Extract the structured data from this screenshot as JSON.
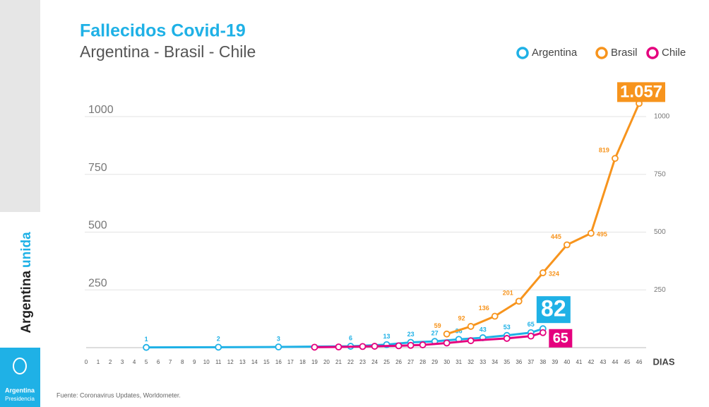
{
  "chart_data": {
    "type": "line",
    "title": "Fallecidos Covid-19",
    "subtitle": "Argentina - Brasil - Chile",
    "x_label": "DIAS",
    "source": "Fuente: Coronavirus Updates, Worldometer.",
    "xlim": [
      0,
      46
    ],
    "xticks": [
      0,
      1,
      2,
      3,
      4,
      5,
      6,
      7,
      8,
      9,
      10,
      11,
      12,
      13,
      14,
      15,
      16,
      17,
      18,
      19,
      20,
      21,
      22,
      23,
      24,
      25,
      26,
      27,
      28,
      29,
      30,
      31,
      32,
      33,
      34,
      35,
      36,
      37,
      38,
      39,
      40,
      41,
      42,
      43,
      44,
      45,
      46
    ],
    "ylim": [
      0,
      1000
    ],
    "yticks": [
      250,
      500,
      750,
      1000
    ],
    "grid": true,
    "legend": "top-right",
    "series": [
      {
        "name": "Argentina",
        "color": "#1fb1e6",
        "point_labels": true,
        "x": [
          5,
          11,
          16,
          22,
          25,
          27,
          29,
          31,
          33,
          35,
          37,
          38
        ],
        "values": [
          1,
          2,
          3,
          6,
          13,
          23,
          27,
          36,
          43,
          53,
          65,
          82
        ]
      },
      {
        "name": "Brasil",
        "color": "#f7941d",
        "point_labels": true,
        "x": [
          30,
          32,
          34,
          36,
          38,
          40,
          42,
          44,
          46
        ],
        "values": [
          59,
          92,
          136,
          201,
          324,
          445,
          495,
          819,
          1057
        ],
        "value_labels": [
          "59",
          "92",
          "136",
          "201",
          "324",
          "445",
          "495",
          "819",
          "1.057"
        ]
      },
      {
        "name": "Chile",
        "color": "#e5007e",
        "point_labels": false,
        "x": [
          19,
          21,
          23,
          24,
          26,
          27,
          28,
          30,
          32,
          35,
          37,
          38
        ],
        "values": [
          2,
          3,
          5,
          6,
          8,
          10,
          12,
          20,
          30,
          40,
          50,
          65
        ]
      }
    ]
  },
  "sidebar": {
    "slogan_1": "Argentina",
    "slogan_2": "unida",
    "logo_1": "Argentina",
    "logo_2": "Presidencia"
  }
}
